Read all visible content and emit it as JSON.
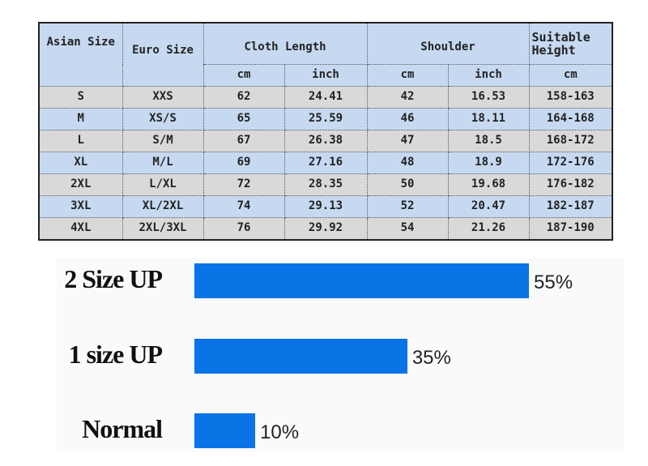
{
  "size_table": {
    "headers": {
      "asian_size": "Asian Size",
      "euro_size": "Euro Size",
      "cloth_length": "Cloth Length",
      "shoulder": "Shoulder",
      "suitable_height": "Suitable Height",
      "cloth_length_cm": "cm",
      "cloth_length_inch": "inch",
      "shoulder_cm": "cm",
      "shoulder_inch": "inch",
      "height_cm": "cm"
    },
    "rows": [
      [
        "S",
        "XXS",
        "62",
        "24.41",
        "42",
        "16.53",
        "158-163"
      ],
      [
        "M",
        "XS/S",
        "65",
        "25.59",
        "46",
        "18.11",
        "164-168"
      ],
      [
        "L",
        "S/M",
        "67",
        "26.38",
        "47",
        "18.5",
        "168-172"
      ],
      [
        "XL",
        "M/L",
        "69",
        "27.16",
        "48",
        "18.9",
        "172-176"
      ],
      [
        "2XL",
        "L/XL",
        "72",
        "28.35",
        "50",
        "19.68",
        "176-182"
      ],
      [
        "3XL",
        "XL/2XL",
        "74",
        "29.13",
        "52",
        "20.47",
        "182-187"
      ],
      [
        "4XL",
        "2XL/3XL",
        "76",
        "29.92",
        "54",
        "21.26",
        "187-190"
      ]
    ]
  },
  "chart_data": {
    "type": "bar",
    "orientation": "horizontal",
    "categories": [
      "2 Size UP",
      "1 size UP",
      "Normal"
    ],
    "values": [
      55,
      35,
      10
    ],
    "data_labels": [
      "55%",
      "35%",
      "10%"
    ],
    "unit": "%",
    "bar_color": "#0a73e6",
    "grid": false,
    "xlim": [
      0,
      55
    ]
  }
}
